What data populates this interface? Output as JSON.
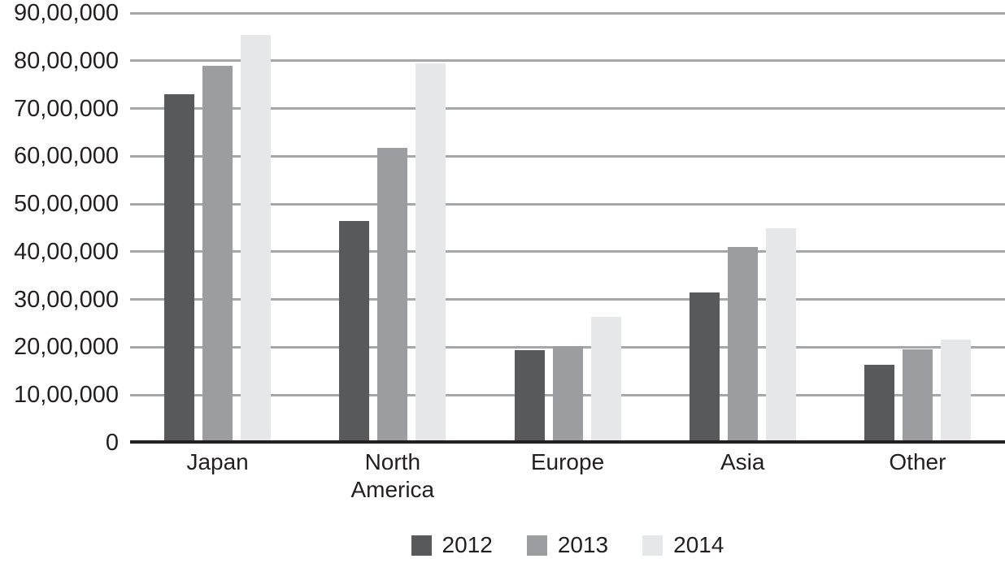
{
  "chart_data": {
    "type": "bar",
    "title": "",
    "categories": [
      "Japan",
      "North America",
      "Europe",
      "Asia",
      "Other"
    ],
    "series": [
      {
        "name": "2012",
        "color": "#58595b",
        "values": [
          7300000,
          4650000,
          1940000,
          3150000,
          1640000
        ]
      },
      {
        "name": "2013",
        "color": "#9b9da0",
        "values": [
          7900000,
          6180000,
          2020000,
          4100000,
          1950000
        ]
      },
      {
        "name": "2014",
        "color": "#e6e7e8",
        "values": [
          8550000,
          7950000,
          2630000,
          4500000,
          2160000
        ]
      }
    ],
    "ylim": [
      0,
      9000000
    ],
    "y_tick_values": [
      0,
      1000000,
      2000000,
      3000000,
      4000000,
      5000000,
      6000000,
      7000000,
      8000000,
      9000000
    ],
    "y_tick_labels": [
      "0",
      "10,00,000",
      "20,00,000",
      "30,00,000",
      "40,00,000",
      "50,00,000",
      "60,00,000",
      "70,00,000",
      "80,00,000",
      "90,00,000"
    ],
    "number_format": "indian-lakh",
    "grid": "horizontal",
    "legend_position": "bottom-center",
    "xlabel": "",
    "ylabel": ""
  },
  "colors": {
    "gridline": "#a5a7aa",
    "axis_line": "#231f20",
    "text": "#231f20",
    "background": "#ffffff",
    "series_2012": "#58595b",
    "series_2013": "#9b9da0",
    "series_2014": "#e6e7e8"
  }
}
